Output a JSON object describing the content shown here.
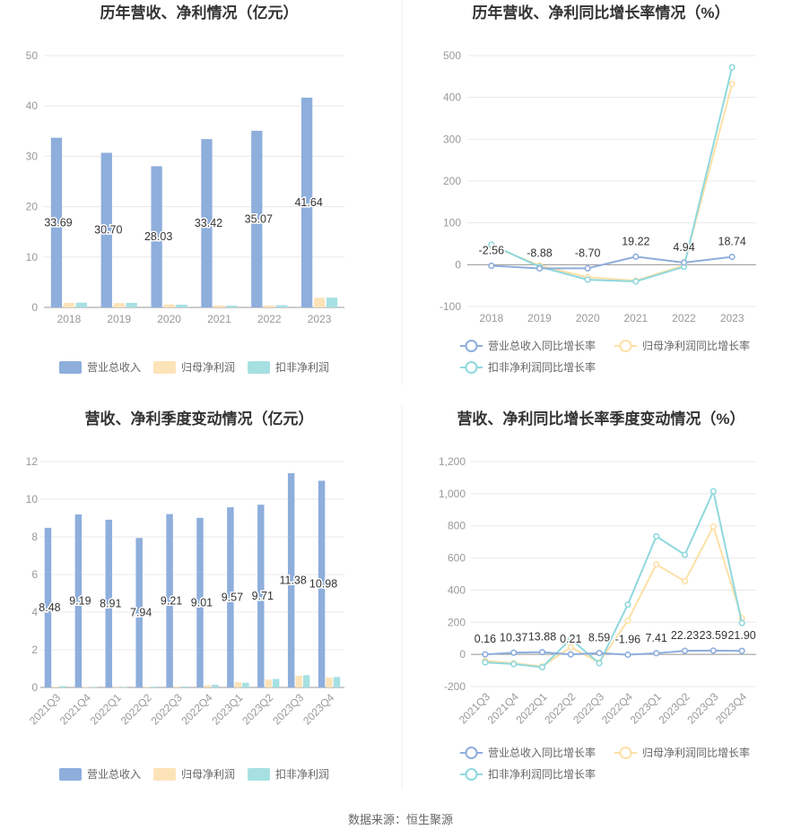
{
  "source": "数据来源：恒生聚源",
  "colors": {
    "revenue": "#8eaedc",
    "net_profit": "#fde3b8",
    "deducted_profit": "#a6e0e3",
    "rev_line": "#8eaedc",
    "np_line": "#fde0a6",
    "dp_line": "#8fd8de"
  },
  "chart_data": [
    {
      "type": "bar",
      "title": "历年营收、净利情况（亿元）",
      "categories": [
        "2018",
        "2019",
        "2020",
        "2021",
        "2022",
        "2023"
      ],
      "ylim": [
        0,
        50
      ],
      "yticks": [
        "0",
        "10",
        "20",
        "30",
        "40",
        "50"
      ],
      "legend": "bottom",
      "series": [
        {
          "name": "营业总收入",
          "values": [
            33.69,
            30.7,
            28.03,
            33.42,
            35.07,
            41.64
          ],
          "labels": [
            "33.69",
            "30.70",
            "28.03",
            "33.42",
            "35.07",
            "41.64"
          ]
        },
        {
          "name": "归母净利润",
          "values": [
            0.9,
            0.85,
            0.6,
            0.4,
            0.4,
            1.9
          ]
        },
        {
          "name": "扣非净利润",
          "values": [
            0.95,
            0.9,
            0.55,
            0.35,
            0.45,
            1.95
          ]
        }
      ]
    },
    {
      "type": "line",
      "title": "历年营收、净利同比增长率情况（%）",
      "categories": [
        "2018",
        "2019",
        "2020",
        "2021",
        "2022",
        "2023"
      ],
      "ylim": [
        -100,
        500
      ],
      "yticks": [
        "-100",
        "0",
        "100",
        "200",
        "300",
        "400",
        "500"
      ],
      "legend": "bottom",
      "series": [
        {
          "name": "营业总收入同比增长率",
          "values": [
            -2.56,
            -8.88,
            -8.7,
            19.22,
            4.94,
            18.74
          ],
          "labels": [
            "-2.56",
            "-8.88",
            "-8.70",
            "19.22",
            "4.94",
            "18.74"
          ]
        },
        {
          "name": "归母净利润同比增长率",
          "values": [
            45,
            -2,
            -30,
            -38,
            -2,
            432
          ]
        },
        {
          "name": "扣非净利润同比增长率",
          "values": [
            48,
            -5,
            -36,
            -40,
            -5,
            472
          ]
        }
      ]
    },
    {
      "type": "bar",
      "title": "营收、净利季度变动情况（亿元）",
      "categories": [
        "2021Q3",
        "2021Q4",
        "2022Q1",
        "2022Q2",
        "2022Q3",
        "2022Q4",
        "2023Q1",
        "2023Q2",
        "2023Q3",
        "2023Q4"
      ],
      "ylim": [
        0,
        12
      ],
      "yticks": [
        "0",
        "2",
        "4",
        "6",
        "8",
        "10",
        "12"
      ],
      "legend": "bottom",
      "series": [
        {
          "name": "营业总收入",
          "values": [
            8.48,
            9.19,
            8.91,
            7.94,
            9.21,
            9.01,
            9.57,
            9.71,
            11.38,
            10.98
          ],
          "labels": [
            "8.48",
            "9.19",
            "8.91",
            "7.94",
            "9.21",
            "9.01",
            "9.57",
            "9.71",
            "11.38",
            "10.98"
          ]
        },
        {
          "name": "归母净利润",
          "values": [
            0.04,
            0.02,
            0.01,
            0.03,
            0.04,
            0.12,
            0.28,
            0.42,
            0.62,
            0.52
          ]
        },
        {
          "name": "扣非净利润",
          "values": [
            0.07,
            0.02,
            0.01,
            0.04,
            0.05,
            0.14,
            0.25,
            0.45,
            0.65,
            0.56
          ]
        }
      ]
    },
    {
      "type": "line",
      "title": "营收、净利同比增长率季度变动情况（%）",
      "categories": [
        "2021Q3",
        "2021Q4",
        "2022Q1",
        "2022Q2",
        "2022Q3",
        "2022Q4",
        "2023Q1",
        "2023Q2",
        "2023Q3",
        "2023Q4"
      ],
      "ylim": [
        -200,
        1200
      ],
      "yticks": [
        "-200",
        "0",
        "200",
        "400",
        "600",
        "800",
        "1,000",
        "1,200"
      ],
      "legend": "bottom",
      "series": [
        {
          "name": "营业总收入同比增长率",
          "values": [
            0.16,
            10.37,
            13.88,
            0.21,
            8.59,
            -1.96,
            7.41,
            22.23,
            23.59,
            21.9
          ],
          "labels": [
            "0.16",
            "10.37",
            "13.88",
            "0.21",
            "8.59",
            "-1.96",
            "7.41",
            "22.23",
            "23.59",
            "21.90"
          ]
        },
        {
          "name": "归母净利润同比增长率",
          "values": [
            -40,
            -55,
            -75,
            45,
            -50,
            210,
            560,
            455,
            795,
            225
          ]
        },
        {
          "name": "扣非净利润同比增长率",
          "values": [
            -50,
            -60,
            -80,
            95,
            -55,
            310,
            735,
            620,
            1015,
            195
          ]
        }
      ]
    }
  ]
}
